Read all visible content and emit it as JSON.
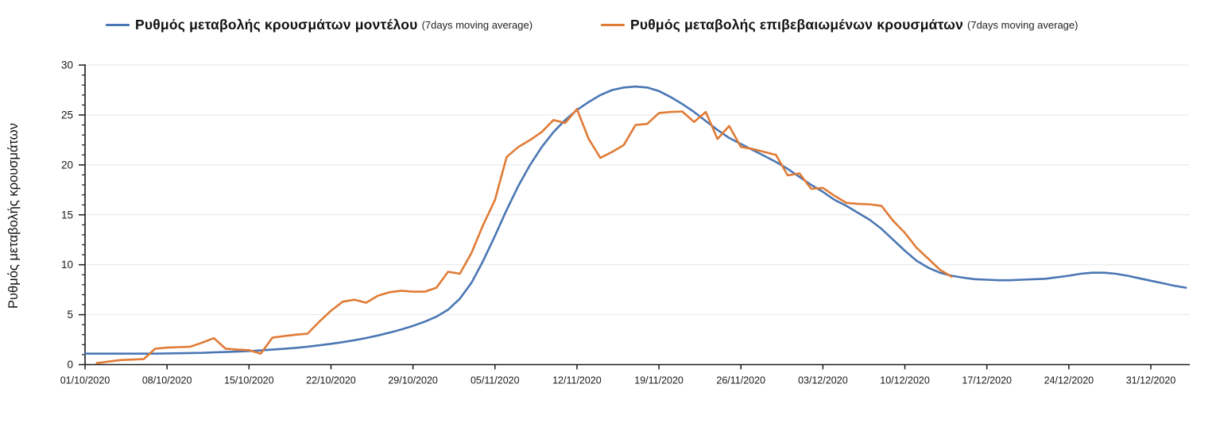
{
  "chart_data": {
    "type": "line",
    "title": "",
    "ylabel": "Ρυθμός μεταβολής κρουσμάτων",
    "xlabel": "",
    "ylim": [
      0,
      30
    ],
    "y_ticks": [
      0,
      5,
      10,
      15,
      20,
      25,
      30
    ],
    "y_minor_step": 1,
    "grid": "horizontal-major",
    "legend_position": "top",
    "x_tick_labels": [
      "01/10/2020",
      "08/10/2020",
      "15/10/2020",
      "22/10/2020",
      "29/10/2020",
      "05/11/2020",
      "12/11/2020",
      "19/11/2020",
      "26/11/2020",
      "03/12/2020",
      "10/12/2020",
      "17/12/2020",
      "24/12/2020",
      "31/12/2020"
    ],
    "x_tick_every_days": 7,
    "colors": {
      "model_line": "#4a77b4",
      "confirmed_line": "#e07b35",
      "grid": "#e7e7e7",
      "axis": "#1a1a1a",
      "text": "#1a1a1a",
      "background": "#ffffff"
    },
    "series": [
      {
        "id": "model",
        "name": "Ρυθμός μεταβολής κρουσμάτων μοντέλου",
        "name_suffix": "(7days moving average)",
        "color": "#4a77b4",
        "start_day": 0,
        "values": [
          1.1,
          1.1,
          1.1,
          1.1,
          1.1,
          1.1,
          1.1,
          1.12,
          1.14,
          1.16,
          1.18,
          1.22,
          1.26,
          1.3,
          1.35,
          1.42,
          1.5,
          1.58,
          1.68,
          1.8,
          1.93,
          2.08,
          2.25,
          2.44,
          2.66,
          2.92,
          3.2,
          3.52,
          3.88,
          4.3,
          4.8,
          5.5,
          6.6,
          8.2,
          10.4,
          12.9,
          15.5,
          17.9,
          20.0,
          21.8,
          23.3,
          24.5,
          25.5,
          26.3,
          27.0,
          27.5,
          27.75,
          27.85,
          27.75,
          27.4,
          26.8,
          26.1,
          25.3,
          24.4,
          23.5,
          22.7,
          22.1,
          21.5,
          20.9,
          20.3,
          19.6,
          18.8,
          18.0,
          17.3,
          16.5,
          15.9,
          15.2,
          14.5,
          13.6,
          12.5,
          11.4,
          10.4,
          9.7,
          9.2,
          8.9,
          8.7,
          8.55,
          8.5,
          8.45,
          8.45,
          8.5,
          8.55,
          8.6,
          8.75,
          8.9,
          9.1,
          9.2,
          9.2,
          9.1,
          8.9,
          8.65,
          8.4,
          8.15,
          7.9,
          7.7
        ]
      },
      {
        "id": "confirmed",
        "name": "Ρυθμός μεταβολής επιβεβαιωμένων κρουσμάτων",
        "name_suffix": "(7days moving average)",
        "color": "#e07b35",
        "start_day": 1,
        "values": [
          0.15,
          0.3,
          0.45,
          0.5,
          0.55,
          1.6,
          1.7,
          1.75,
          1.8,
          2.2,
          2.65,
          1.6,
          1.5,
          1.45,
          1.1,
          2.7,
          2.85,
          3.0,
          3.1,
          4.3,
          5.4,
          6.3,
          6.5,
          6.2,
          6.9,
          7.25,
          7.4,
          7.3,
          7.3,
          7.7,
          9.3,
          9.1,
          11.2,
          14.0,
          16.5,
          20.8,
          21.8,
          22.5,
          23.3,
          24.5,
          24.2,
          25.6,
          22.6,
          20.7,
          21.3,
          22.0,
          24.0,
          24.1,
          25.2,
          25.3,
          25.35,
          24.3,
          25.3,
          22.6,
          23.9,
          21.8,
          21.6,
          21.3,
          21.0,
          18.95,
          19.15,
          17.6,
          17.7,
          16.9,
          16.2,
          16.1,
          16.05,
          15.9,
          14.4,
          13.2,
          11.7,
          10.6,
          9.5,
          8.8
        ]
      }
    ]
  }
}
